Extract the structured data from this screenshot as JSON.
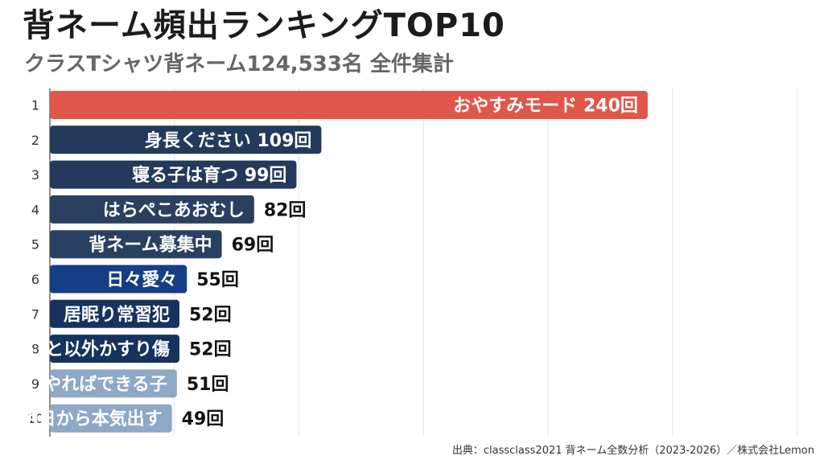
{
  "title": "背ネーム頻出ランキングTOP10",
  "subtitle": "クラスTシャツ背ネーム124,533名 全件集計",
  "source": "出典：classclass2021 背ネーム全数分析（2023-2026）／株式会社Lemon",
  "chart_data": {
    "type": "bar",
    "orientation": "horizontal",
    "title": "背ネーム頻出ランキングTOP10",
    "subtitle": "クラスTシャツ背ネーム124,533名 全件集計",
    "xlim": [
      0,
      300
    ],
    "grid": true,
    "categories": [
      "1",
      "2",
      "3",
      "4",
      "5",
      "6",
      "7",
      "8",
      "9",
      "10"
    ],
    "bars": [
      {
        "rank": "1",
        "name": "おやすみモード",
        "value": 240,
        "value_label": "240回",
        "color": "#e0564a"
      },
      {
        "rank": "2",
        "name": "身長ください",
        "value": 109,
        "value_label": "109回",
        "color": "#233a5c"
      },
      {
        "rank": "3",
        "name": "寝る子は育つ",
        "value": 99,
        "value_label": "99回",
        "color": "#233a5c"
      },
      {
        "rank": "4",
        "name": "はらぺこあおむし",
        "value": 82,
        "value_label": "82回",
        "color": "#2a4060"
      },
      {
        "rank": "5",
        "name": "背ネーム募集中",
        "value": 69,
        "value_label": "69回",
        "color": "#2a4060"
      },
      {
        "rank": "6",
        "name": "日々愛々",
        "value": 55,
        "value_label": "55回",
        "color": "#143e86"
      },
      {
        "rank": "7",
        "name": "居眠り常習犯",
        "value": 52,
        "value_label": "52回",
        "color": "#16335f"
      },
      {
        "rank": "8",
        "name": "死ぬこと以外かすり傷",
        "value": 52,
        "value_label": "52回",
        "color": "#16335f"
      },
      {
        "rank": "9",
        "name": "やればできる子",
        "value": 51,
        "value_label": "51回",
        "color": "#8ea8c6"
      },
      {
        "rank": "10",
        "name": "明日から本気出す",
        "value": 49,
        "value_label": "49回",
        "color": "#8ea8c6"
      }
    ]
  }
}
